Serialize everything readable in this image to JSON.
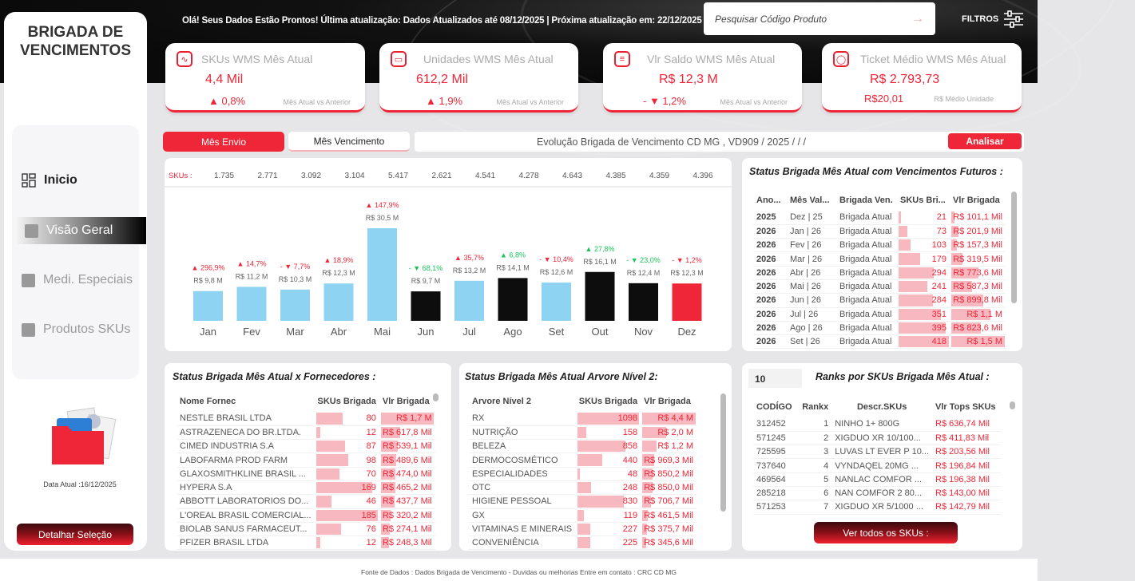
{
  "header": {
    "greeting": "Olá! Seus Dados Estão Prontos! Última atualização: Dados Atualizados até 08/12/2025 | Próxima atualização em: 22/12/2025",
    "search_placeholder": "Pesquisar Código Produto",
    "filters_label": "FILTROS"
  },
  "sidebar": {
    "logo": "BRIGADA DE VENCIMENTOS",
    "items": [
      {
        "label": "Inicio",
        "icon": "grid-icon"
      },
      {
        "label": "Visão Geral"
      },
      {
        "label": "Medi. Especiais"
      },
      {
        "label": "Produtos SKUs"
      }
    ],
    "date": "Data Atual :16/12/2025",
    "detail_button": "Detalhar Seleção"
  },
  "kpis": [
    {
      "title": "SKUs WMS Mês Atual",
      "value": "4,4 Mil",
      "delta": "▲ 0,8%",
      "sub": "Mês Atual vs Anterior",
      "icon": "activity-icon"
    },
    {
      "title": "Unidades WMS Mês Atual",
      "value": "612,2 Mil",
      "delta": "▲ 1,9%",
      "sub": "Mês Atual vs Anterior",
      "icon": "wallet-icon"
    },
    {
      "title": "Vlr Saldo WMS Mês Atual",
      "value": "R$ 12,3 M",
      "delta": "- ▼ 1,2%",
      "sub": "Mês Atual vs Anterior",
      "icon": "document-icon"
    },
    {
      "title": "Ticket Médio WMS Mês Atual",
      "value": "R$ 2.793,73",
      "delta": "R$20,01",
      "sub": "R$ Médio Unidade",
      "icon": "chat-icon"
    }
  ],
  "tabs": {
    "envio": "Mês Envio",
    "vencimento": "Mês Vencimento",
    "evolution": "Evolução Brigada de Vencimento CD MG , VD909 / 2025 / / /",
    "analyze": "Analisar"
  },
  "colors": {
    "accent": "#ef2637",
    "bar_blue": "#8fd3f2",
    "bar_black": "#0d0d0d",
    "up_green": "#17c45a"
  },
  "chart_data": {
    "type": "bar",
    "skus_label": "SKUs :",
    "categories": [
      "Jan",
      "Fev",
      "Mar",
      "Abr",
      "Mai",
      "Jun",
      "Jul",
      "Ago",
      "Set",
      "Out",
      "Nov",
      "Dez"
    ],
    "skus": [
      "1.735",
      "2.771",
      "3.092",
      "3.104",
      "5.417",
      "2.621",
      "4.541",
      "4.278",
      "4.643",
      "4.385",
      "4.359",
      "4.396"
    ],
    "values": [
      9.8,
      11.2,
      10.3,
      12.3,
      30.5,
      9.7,
      13.2,
      14.1,
      12.6,
      16.1,
      12.4,
      12.3
    ],
    "value_labels": [
      "R$ 9,8 M",
      "R$ 11,2 M",
      "R$ 10,3 M",
      "R$ 12,3 M",
      "R$ 30,5 M",
      "R$ 9,7 M",
      "R$ 13,2 M",
      "R$ 14,1 M",
      "R$ 12,6 M",
      "R$ 16,1 M",
      "R$ 12,4 M",
      "R$ 12,3 M"
    ],
    "variation": [
      "▲ 296,9%",
      "▲ 14,7%",
      "- ▼ 7,7%",
      "▲ 18,9%",
      "▲ 147,9%",
      "- ▼ 68,1%",
      "▲ 35,7%",
      "▲ 6,8%",
      "- ▼ 10,4%",
      "▲ 27,8%",
      "- ▼ 23,0%",
      "- ▼ 1,2%"
    ],
    "variation_color": [
      "red",
      "red",
      "red",
      "red",
      "red",
      "green",
      "red",
      "green",
      "red",
      "green",
      "green",
      "red"
    ],
    "bar_color": [
      "blue",
      "blue",
      "blue",
      "blue",
      "blue",
      "black",
      "blue",
      "black",
      "blue",
      "black",
      "black",
      "red"
    ]
  },
  "futuros": {
    "title": "Status Brigada Mês Atual com Vencimentos Futuros :",
    "columns": [
      "Ano...",
      "Mês Val...",
      "Brigada Ven.",
      "SKUs Bri...",
      "Vlr Brigada"
    ],
    "rows": [
      [
        "2025",
        "Dez | 25",
        "Brigada Atual",
        "21",
        "R$ 101,1 Mil"
      ],
      [
        "2026",
        "Jan | 26",
        "Brigada Atual",
        "73",
        "R$ 201,9 Mil"
      ],
      [
        "2026",
        "Fev | 26",
        "Brigada Atual",
        "103",
        "R$ 157,3 Mil"
      ],
      [
        "2026",
        "Mar | 26",
        "Brigada Atual",
        "179",
        "R$ 319,5 Mil"
      ],
      [
        "2026",
        "Abr | 26",
        "Brigada Atual",
        "294",
        "R$ 773,6 Mil"
      ],
      [
        "2026",
        "Mai | 26",
        "Brigada Atual",
        "241",
        "R$ 587,3 Mil"
      ],
      [
        "2026",
        "Jun | 26",
        "Brigada Atual",
        "284",
        "R$ 899,8 Mil"
      ],
      [
        "2026",
        "Jul | 26",
        "Brigada Atual",
        "351",
        "R$ 1,1 M"
      ],
      [
        "2026",
        "Ago | 26",
        "Brigada Atual",
        "395",
        "R$ 823,6 Mil"
      ],
      [
        "2026",
        "Set | 26",
        "Brigada Atual",
        "418",
        "R$ 1,5 M"
      ]
    ]
  },
  "fornecedores": {
    "title": "Status Brigada Mês Atual x Fornecedores :",
    "columns": [
      "Nome Fornec",
      "SKUs Brigada",
      "Vlr Brigada"
    ],
    "rows": [
      [
        "NESTLE BRASIL LTDA",
        "80",
        "R$ 1,7 M"
      ],
      [
        "ASTRAZENECA DO BR.LTDA.",
        "12",
        "R$ 617,8 Mil"
      ],
      [
        "CIMED INDUSTRIA S.A",
        "87",
        "R$ 539,1 Mil"
      ],
      [
        "LABOFARMA PROD FARM",
        "98",
        "R$ 489,6 Mil"
      ],
      [
        "GLAXOSMITHKLINE BRASIL ...",
        "70",
        "R$ 474,0 Mil"
      ],
      [
        "HYPERA S.A",
        "169",
        "R$ 465,2 Mil"
      ],
      [
        "ABBOTT LABORATORIOS DO...",
        "46",
        "R$ 437,7 Mil"
      ],
      [
        "L'OREAL BRASIL COMERCIAL...",
        "185",
        "R$ 320,2 Mil"
      ],
      [
        "BIOLAB SANUS FARMACEUT...",
        "76",
        "R$ 274,1 Mil"
      ],
      [
        "PFIZER BRASIL LTDA",
        "12",
        "R$ 248,3 Mil"
      ]
    ]
  },
  "arvore": {
    "title": "Status Brigada Mês Atual Arvore Nível 2:",
    "columns": [
      "Arvore Nível 2",
      "SKUs Brigada",
      "Vlr Brigada"
    ],
    "rows": [
      [
        "RX",
        "1098",
        "R$ 4,4 M"
      ],
      [
        "NUTRIÇÃO",
        "158",
        "R$ 2,0 M"
      ],
      [
        "BELEZA",
        "858",
        "R$ 1,2 M"
      ],
      [
        "DERMOCOSMÉTICO",
        "440",
        "R$ 969,3 Mil"
      ],
      [
        "ESPECIALIDADES",
        "48",
        "R$ 850,2 Mil"
      ],
      [
        "OTC",
        "248",
        "R$ 850,0 Mil"
      ],
      [
        "HIGIENE PESSOAL",
        "830",
        "R$ 706,7 Mil"
      ],
      [
        "GX",
        "119",
        "R$ 461,5 Mil"
      ],
      [
        "VITAMINAS E MINERAIS",
        "227",
        "R$ 375,7 Mil"
      ],
      [
        "CONVENIÊNCIA",
        "225",
        "R$ 345,6 Mil"
      ]
    ]
  },
  "ranks": {
    "top_n": "10",
    "title": "Ranks por SKUs Brigada Mês Atual :",
    "columns": [
      "CODÍGO",
      "Rankx",
      "Descr.SKUs",
      "Vlr Tops SKUs"
    ],
    "rows": [
      [
        "312452",
        "1",
        "NINHO 1+ 800G",
        "R$ 636,74 Mil"
      ],
      [
        "571245",
        "2",
        "XIGDUO XR 10/100...",
        "R$ 411,83 Mil"
      ],
      [
        "725595",
        "3",
        "LUVAS LT EVER P 10...",
        "R$ 203,56 Mil"
      ],
      [
        "737640",
        "4",
        "VYNDAQEL 20MG ...",
        "R$ 196,84 Mil"
      ],
      [
        "469564",
        "5",
        "NANLAC COMFOR ...",
        "R$ 196,38 Mil"
      ],
      [
        "285218",
        "6",
        "NAN COMFOR 2 80...",
        "R$ 143,00 Mil"
      ],
      [
        "571253",
        "7",
        "XIGDUO XR 5/1000 ...",
        "R$ 142,79 Mil"
      ]
    ],
    "button": "Ver todos os SKUs :"
  },
  "footer": "Fonte de Dados : Dados Brigada de Vencimento    -     Duvidas ou melhorias  Entre em contato : CRC CD MG"
}
